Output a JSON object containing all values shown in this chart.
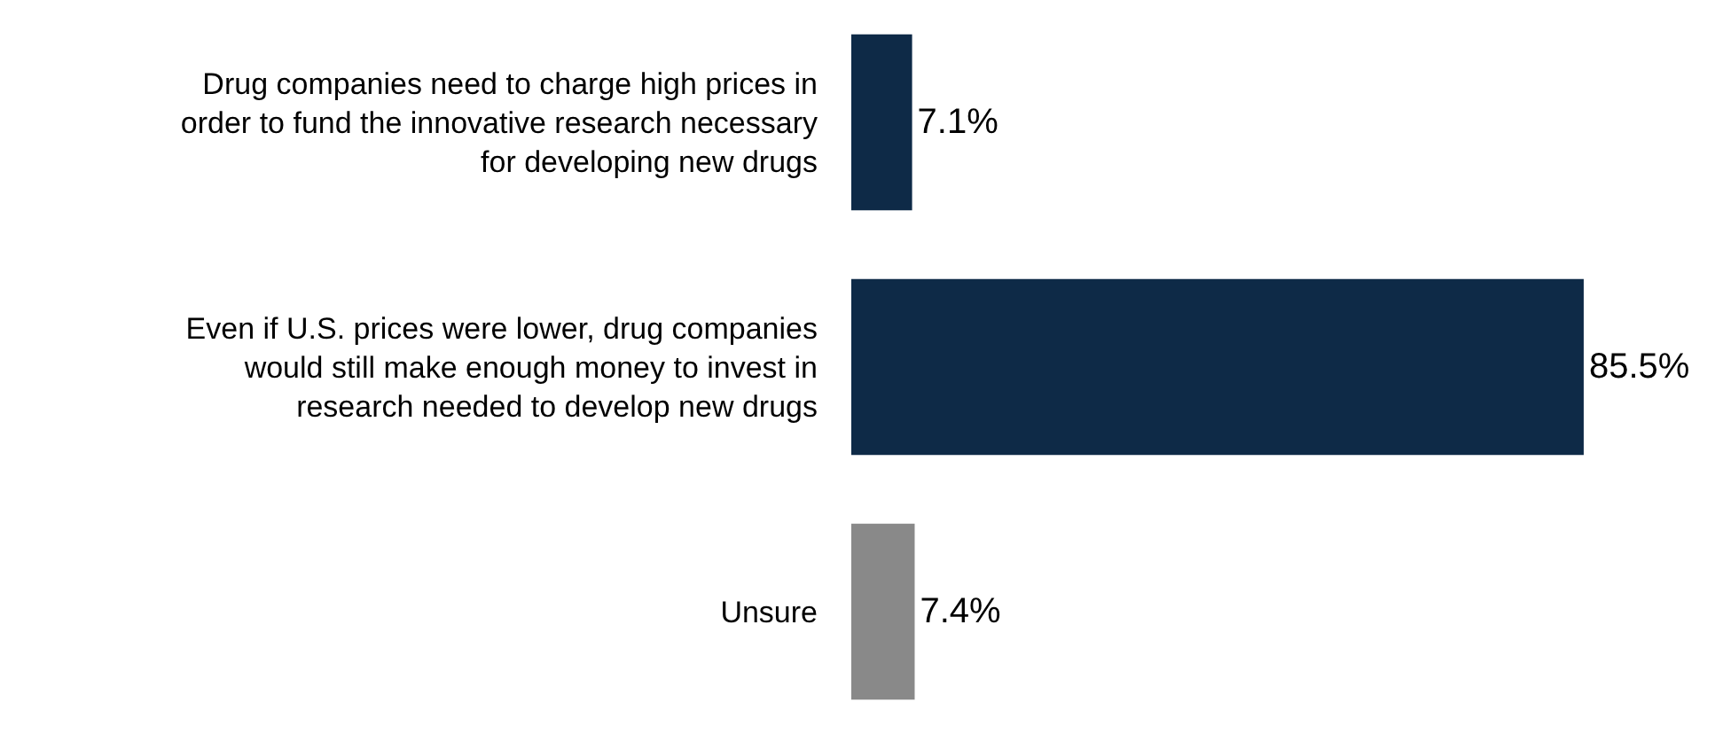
{
  "chart_data": {
    "type": "bar",
    "orientation": "horizontal",
    "categories": [
      "Drug companies need to charge high prices in order to fund the innovative research necessary for developing new drugs",
      "Even if U.S. prices were lower, drug companies would still make enough money to invest in research needed to develop new drugs",
      "Unsure"
    ],
    "values": [
      7.1,
      85.5,
      7.4
    ],
    "colors": [
      "#0e2a47",
      "#0e2a47",
      "#898989"
    ],
    "value_labels": [
      "7.1%",
      "85.5%",
      "7.4%"
    ],
    "xlim": [
      0,
      100
    ]
  }
}
